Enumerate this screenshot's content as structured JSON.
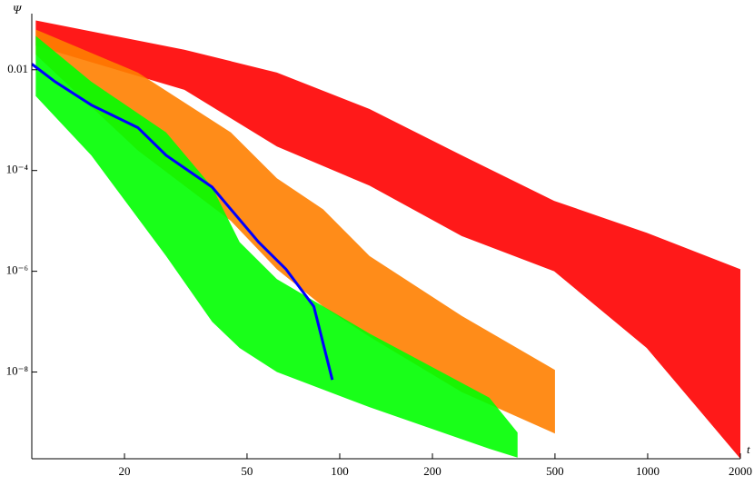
{
  "chart_data": {
    "type": "area",
    "xscale": "log",
    "yscale": "log",
    "xlabel": "t",
    "ylabel": "Ψ",
    "xlim": [
      10,
      2000
    ],
    "ylim": [
      1.9e-10,
      0.13
    ],
    "xticks": [
      20,
      50,
      100,
      200,
      500,
      1000,
      2000
    ],
    "yticks": [
      {
        "value": 0.01,
        "label": "0.01"
      },
      {
        "value": 0.0001,
        "label": "10⁻⁴"
      },
      {
        "value": 1e-06,
        "label": "10⁻⁶"
      },
      {
        "value": 1e-08,
        "label": "10⁻⁸"
      }
    ],
    "series": [
      {
        "color": "#ff0000",
        "x": [
          10.3,
          31.3,
          62.5,
          125,
          249,
          497,
          993,
          2000
        ],
        "values": [
          0.095,
          0.025,
          0.0088,
          0.00166,
          0.0002,
          2.5e-05,
          5.8e-06,
          1.1e-06
        ],
        "lower": [
          0.03,
          0.004,
          0.0003,
          5e-05,
          5e-06,
          1e-06,
          3e-08,
          1.9e-10
        ]
      },
      {
        "color": "#ff8000",
        "x": [
          10.3,
          22.1,
          44.3,
          62.5,
          88.3,
          125,
          249,
          500
        ],
        "values": [
          0.063,
          0.0088,
          0.00057,
          7e-05,
          1.7e-05,
          2e-06,
          1.3e-07,
          1.1e-08
        ],
        "lower": [
          0.02,
          0.00025,
          1e-05,
          1.1e-06,
          2e-07,
          5e-08,
          4e-09,
          6e-10
        ]
      },
      {
        "color": "#00ff00",
        "x": [
          10.3,
          15.6,
          27.3,
          38.5,
          47.3,
          62.5,
          125,
          306,
          378
        ],
        "values": [
          0.047,
          0.0058,
          0.00057,
          4.7e-05,
          3.8e-06,
          7e-07,
          5.8e-08,
          3.1e-09,
          6.3e-10
        ],
        "lower": [
          0.003,
          0.0002,
          2e-06,
          1e-07,
          3e-08,
          1e-08,
          2e-09,
          3e-10,
          2e-10
        ]
      },
      {
        "color": "#0000ff",
        "type": "line",
        "x": [
          10,
          11.9,
          15.6,
          22.1,
          27.3,
          38.5,
          54.5,
          66.9,
          82.4,
          94.6
        ],
        "values": [
          0.013,
          0.0058,
          0.002,
          0.00071,
          0.0002,
          4.7e-05,
          3.8e-06,
          1.1e-06,
          2e-07,
          7e-09
        ]
      }
    ]
  }
}
